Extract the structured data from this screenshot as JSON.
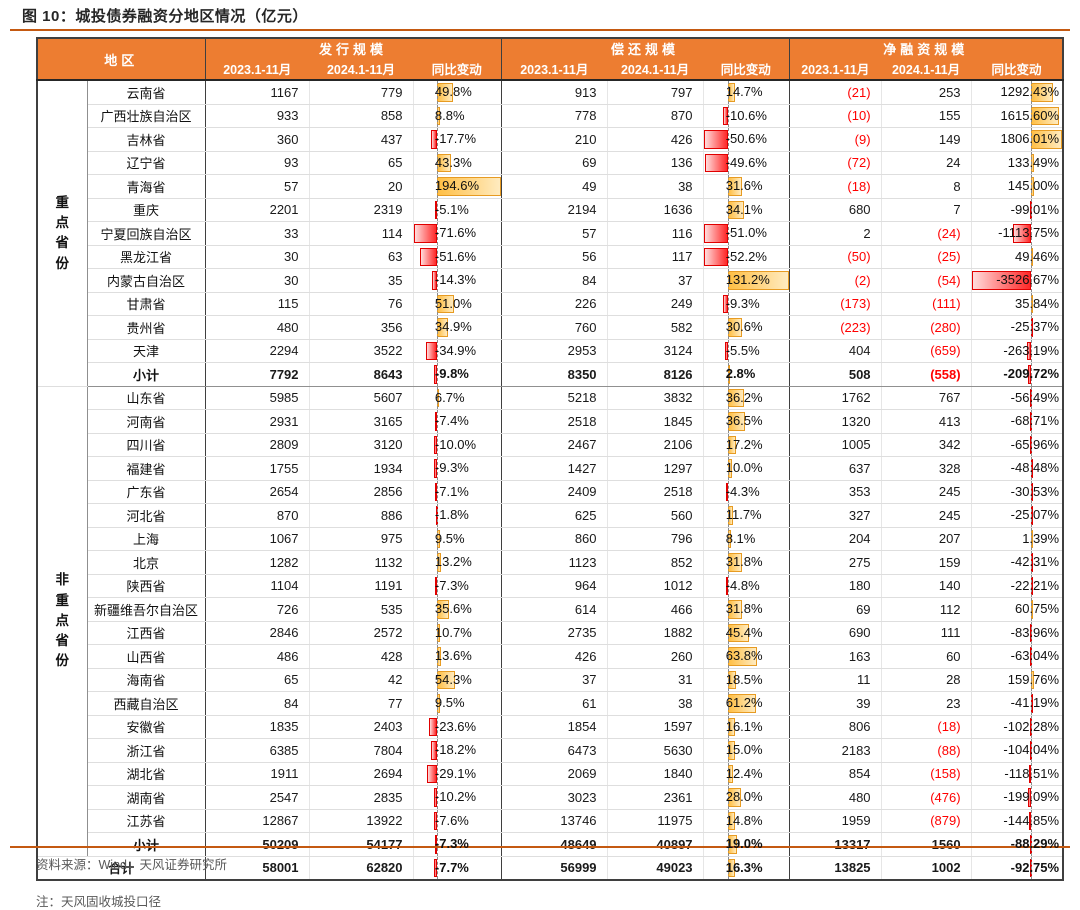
{
  "title": "图 10：城投债券融资分地区情况（亿元）",
  "source": "资料来源：Wind，天风证券研究所",
  "note": "注：天风固收城投口径",
  "colors": {
    "header_bg": "#ED7D31",
    "accent_rule": "#C45911",
    "negative_text": "#FF0000",
    "bar_positive": "#FFBF45",
    "bar_negative": "#FF2828"
  },
  "table": {
    "stub_header": "地区",
    "groups": [
      {
        "label": "发行规模",
        "columns": [
          "2023.1-11月",
          "2024.1-11月",
          "同比变动"
        ]
      },
      {
        "label": "偿还规模",
        "columns": [
          "2023.1-11月",
          "2024.1-11月",
          "同比变动"
        ]
      },
      {
        "label": "净融资规模",
        "columns": [
          "2023.1-11月",
          "2024.1-11月",
          "同比变动"
        ]
      }
    ],
    "bars": {
      "issue": {
        "min": -71.6,
        "max": 194.6,
        "decimals": 1
      },
      "repay": {
        "min": -52.2,
        "max": 131.2,
        "decimals": 1
      },
      "net": {
        "min": -3526.67,
        "max": 1806.01,
        "decimals": 2
      }
    },
    "sections": [
      {
        "label": "重点省份",
        "rows": [
          {
            "region": "云南省",
            "issue": [
              "1167",
              "779"
            ],
            "issue_chg": 49.8,
            "repay": [
              "913",
              "797"
            ],
            "repay_chg": 14.7,
            "net": [
              "(21)",
              "253"
            ],
            "net_chg": 1292.43
          },
          {
            "region": "广西壮族自治区",
            "issue": [
              "933",
              "858"
            ],
            "issue_chg": 8.8,
            "repay": [
              "778",
              "870"
            ],
            "repay_chg": -10.6,
            "net": [
              "(10)",
              "155"
            ],
            "net_chg": 1615.6
          },
          {
            "region": "吉林省",
            "issue": [
              "360",
              "437"
            ],
            "issue_chg": -17.7,
            "repay": [
              "210",
              "426"
            ],
            "repay_chg": -50.6,
            "net": [
              "(9)",
              "149"
            ],
            "net_chg": 1806.01
          },
          {
            "region": "辽宁省",
            "issue": [
              "93",
              "65"
            ],
            "issue_chg": 43.3,
            "repay": [
              "69",
              "136"
            ],
            "repay_chg": -49.6,
            "net": [
              "(72)",
              "24"
            ],
            "net_chg": 133.49
          },
          {
            "region": "青海省",
            "issue": [
              "57",
              "20"
            ],
            "issue_chg": 194.6,
            "repay": [
              "49",
              "38"
            ],
            "repay_chg": 31.6,
            "net": [
              "(18)",
              "8"
            ],
            "net_chg": 145.0
          },
          {
            "region": "重庆",
            "issue": [
              "2201",
              "2319"
            ],
            "issue_chg": -5.1,
            "repay": [
              "2194",
              "1636"
            ],
            "repay_chg": 34.1,
            "net": [
              "680",
              "7"
            ],
            "net_chg": -99.01
          },
          {
            "region": "宁夏回族自治区",
            "issue": [
              "33",
              "114"
            ],
            "issue_chg": -71.6,
            "repay": [
              "57",
              "116"
            ],
            "repay_chg": -51.0,
            "net": [
              "2",
              "(24)"
            ],
            "net_chg": -1113.75
          },
          {
            "region": "黑龙江省",
            "issue": [
              "30",
              "63"
            ],
            "issue_chg": -51.6,
            "repay": [
              "56",
              "117"
            ],
            "repay_chg": -52.2,
            "net": [
              "(50)",
              "(25)"
            ],
            "net_chg": 49.46
          },
          {
            "region": "内蒙古自治区",
            "issue": [
              "30",
              "35"
            ],
            "issue_chg": -14.3,
            "repay": [
              "84",
              "37"
            ],
            "repay_chg": 131.2,
            "net": [
              "(2)",
              "(54)"
            ],
            "net_chg": -3526.67
          },
          {
            "region": "甘肃省",
            "issue": [
              "115",
              "76"
            ],
            "issue_chg": 51.0,
            "repay": [
              "226",
              "249"
            ],
            "repay_chg": -9.3,
            "net": [
              "(173)",
              "(111)"
            ],
            "net_chg": 35.84
          },
          {
            "region": "贵州省",
            "issue": [
              "480",
              "356"
            ],
            "issue_chg": 34.9,
            "repay": [
              "760",
              "582"
            ],
            "repay_chg": 30.6,
            "net": [
              "(223)",
              "(280)"
            ],
            "net_chg": -25.37
          },
          {
            "region": "天津",
            "issue": [
              "2294",
              "3522"
            ],
            "issue_chg": -34.9,
            "repay": [
              "2953",
              "3124"
            ],
            "repay_chg": -5.5,
            "net": [
              "404",
              "(659)"
            ],
            "net_chg": -263.19
          },
          {
            "region": "小计",
            "issue": [
              "7792",
              "8643"
            ],
            "issue_chg": -9.8,
            "repay": [
              "8350",
              "8126"
            ],
            "repay_chg": 2.8,
            "net": [
              "508",
              "(558)"
            ],
            "net_chg": -209.72
          }
        ]
      },
      {
        "label": "非重点省份",
        "rows": [
          {
            "region": "山东省",
            "issue": [
              "5985",
              "5607"
            ],
            "issue_chg": 6.7,
            "repay": [
              "5218",
              "3832"
            ],
            "repay_chg": 36.2,
            "net": [
              "1762",
              "767"
            ],
            "net_chg": -56.49
          },
          {
            "region": "河南省",
            "issue": [
              "2931",
              "3165"
            ],
            "issue_chg": -7.4,
            "repay": [
              "2518",
              "1845"
            ],
            "repay_chg": 36.5,
            "net": [
              "1320",
              "413"
            ],
            "net_chg": -68.71
          },
          {
            "region": "四川省",
            "issue": [
              "2809",
              "3120"
            ],
            "issue_chg": -10.0,
            "repay": [
              "2467",
              "2106"
            ],
            "repay_chg": 17.2,
            "net": [
              "1005",
              "342"
            ],
            "net_chg": -65.96
          },
          {
            "region": "福建省",
            "issue": [
              "1755",
              "1934"
            ],
            "issue_chg": -9.3,
            "repay": [
              "1427",
              "1297"
            ],
            "repay_chg": 10.0,
            "net": [
              "637",
              "328"
            ],
            "net_chg": -48.48
          },
          {
            "region": "广东省",
            "issue": [
              "2654",
              "2856"
            ],
            "issue_chg": -7.1,
            "repay": [
              "2409",
              "2518"
            ],
            "repay_chg": -4.3,
            "net": [
              "353",
              "245"
            ],
            "net_chg": -30.53
          },
          {
            "region": "河北省",
            "issue": [
              "870",
              "886"
            ],
            "issue_chg": -1.8,
            "repay": [
              "625",
              "560"
            ],
            "repay_chg": 11.7,
            "net": [
              "327",
              "245"
            ],
            "net_chg": -25.07
          },
          {
            "region": "上海",
            "issue": [
              "1067",
              "975"
            ],
            "issue_chg": 9.5,
            "repay": [
              "860",
              "796"
            ],
            "repay_chg": 8.1,
            "net": [
              "204",
              "207"
            ],
            "net_chg": 1.39
          },
          {
            "region": "北京",
            "issue": [
              "1282",
              "1132"
            ],
            "issue_chg": 13.2,
            "repay": [
              "1123",
              "852"
            ],
            "repay_chg": 31.8,
            "net": [
              "275",
              "159"
            ],
            "net_chg": -42.31
          },
          {
            "region": "陕西省",
            "issue": [
              "1104",
              "1191"
            ],
            "issue_chg": -7.3,
            "repay": [
              "964",
              "1012"
            ],
            "repay_chg": -4.8,
            "net": [
              "180",
              "140"
            ],
            "net_chg": -22.21
          },
          {
            "region": "新疆维吾尔自治区",
            "issue": [
              "726",
              "535"
            ],
            "issue_chg": 35.6,
            "repay": [
              "614",
              "466"
            ],
            "repay_chg": 31.8,
            "net": [
              "69",
              "112"
            ],
            "net_chg": 60.75
          },
          {
            "region": "江西省",
            "issue": [
              "2846",
              "2572"
            ],
            "issue_chg": 10.7,
            "repay": [
              "2735",
              "1882"
            ],
            "repay_chg": 45.4,
            "net": [
              "690",
              "111"
            ],
            "net_chg": -83.96
          },
          {
            "region": "山西省",
            "issue": [
              "486",
              "428"
            ],
            "issue_chg": 13.6,
            "repay": [
              "426",
              "260"
            ],
            "repay_chg": 63.8,
            "net": [
              "163",
              "60"
            ],
            "net_chg": -63.04
          },
          {
            "region": "海南省",
            "issue": [
              "65",
              "42"
            ],
            "issue_chg": 54.3,
            "repay": [
              "37",
              "31"
            ],
            "repay_chg": 18.5,
            "net": [
              "11",
              "28"
            ],
            "net_chg": 159.76
          },
          {
            "region": "西藏自治区",
            "issue": [
              "84",
              "77"
            ],
            "issue_chg": 9.5,
            "repay": [
              "61",
              "38"
            ],
            "repay_chg": 61.2,
            "net": [
              "39",
              "23"
            ],
            "net_chg": -41.19
          },
          {
            "region": "安徽省",
            "issue": [
              "1835",
              "2403"
            ],
            "issue_chg": -23.6,
            "repay": [
              "1854",
              "1597"
            ],
            "repay_chg": 16.1,
            "net": [
              "806",
              "(18)"
            ],
            "net_chg": -102.28
          },
          {
            "region": "浙江省",
            "issue": [
              "6385",
              "7804"
            ],
            "issue_chg": -18.2,
            "repay": [
              "6473",
              "5630"
            ],
            "repay_chg": 15.0,
            "net": [
              "2183",
              "(88)"
            ],
            "net_chg": -104.04
          },
          {
            "region": "湖北省",
            "issue": [
              "1911",
              "2694"
            ],
            "issue_chg": -29.1,
            "repay": [
              "2069",
              "1840"
            ],
            "repay_chg": 12.4,
            "net": [
              "854",
              "(158)"
            ],
            "net_chg": -118.51
          },
          {
            "region": "湖南省",
            "issue": [
              "2547",
              "2835"
            ],
            "issue_chg": -10.2,
            "repay": [
              "3023",
              "2361"
            ],
            "repay_chg": 28.0,
            "net": [
              "480",
              "(476)"
            ],
            "net_chg": -199.09
          },
          {
            "region": "江苏省",
            "issue": [
              "12867",
              "13922"
            ],
            "issue_chg": -7.6,
            "repay": [
              "13746",
              "11975"
            ],
            "repay_chg": 14.8,
            "net": [
              "1959",
              "(879)"
            ],
            "net_chg": -144.85
          },
          {
            "region": "小计",
            "issue": [
              "50209",
              "54177"
            ],
            "issue_chg": -7.3,
            "repay": [
              "48649",
              "40897"
            ],
            "repay_chg": 19.0,
            "net": [
              "13317",
              "1560"
            ],
            "net_chg": -88.29
          }
        ]
      }
    ],
    "total": {
      "region": "合计",
      "issue": [
        "58001",
        "62820"
      ],
      "issue_chg": -7.7,
      "repay": [
        "56999",
        "49023"
      ],
      "repay_chg": 16.3,
      "net": [
        "13825",
        "1002"
      ],
      "net_chg": -92.75
    }
  }
}
